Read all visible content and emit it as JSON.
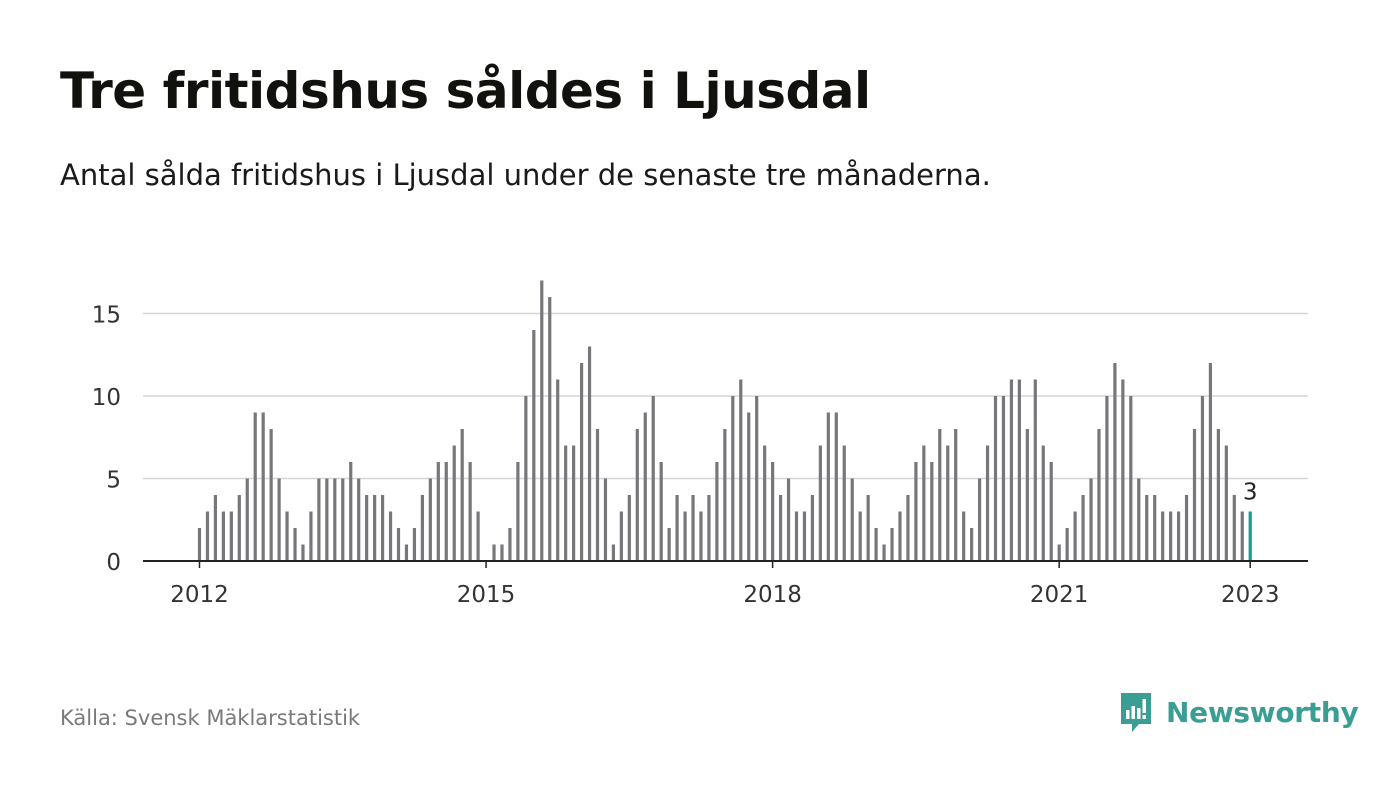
{
  "title": "Tre fritidshus såldes i Ljusdal",
  "subtitle": "Antal sålda fritidshus i Ljusdal under de senaste tre månaderna.",
  "source": "Källa: Svensk Mäklarstatistik",
  "brand": {
    "name": "Newsworthy",
    "icon": "newsworthy-logo-icon",
    "color": "#3b9e95"
  },
  "colors": {
    "bar": "#77777b",
    "highlight": "#1a9a8f",
    "grid": "#d6d6d6",
    "axis": "#222222"
  },
  "chart_data": {
    "type": "bar",
    "start": "2012-01",
    "values": [
      2,
      3,
      4,
      3,
      3,
      4,
      5,
      9,
      9,
      8,
      5,
      3,
      2,
      1,
      3,
      5,
      5,
      5,
      5,
      6,
      5,
      4,
      4,
      4,
      3,
      2,
      1,
      2,
      4,
      5,
      6,
      6,
      7,
      8,
      6,
      3,
      0,
      1,
      1,
      2,
      6,
      10,
      14,
      17,
      16,
      11,
      7,
      7,
      12,
      13,
      8,
      5,
      1,
      3,
      4,
      8,
      9,
      10,
      6,
      2,
      4,
      3,
      4,
      3,
      4,
      6,
      8,
      10,
      11,
      9,
      10,
      7,
      6,
      4,
      5,
      3,
      3,
      4,
      7,
      9,
      9,
      7,
      5,
      3,
      4,
      2,
      1,
      2,
      3,
      4,
      6,
      7,
      6,
      8,
      7,
      8,
      3,
      2,
      5,
      7,
      10,
      10,
      11,
      11,
      8,
      11,
      7,
      6,
      1,
      2,
      3,
      4,
      5,
      8,
      10,
      12,
      11,
      10,
      5,
      4,
      4,
      3,
      3,
      3,
      4,
      8,
      10,
      12,
      8,
      7,
      4,
      3,
      3
    ],
    "y_ticks": [
      0,
      5,
      10,
      15
    ],
    "ylim": [
      0,
      17
    ],
    "x_ticks": [
      "2012",
      "2015",
      "2018",
      "2021",
      "2023"
    ],
    "last_value_label": "3"
  }
}
